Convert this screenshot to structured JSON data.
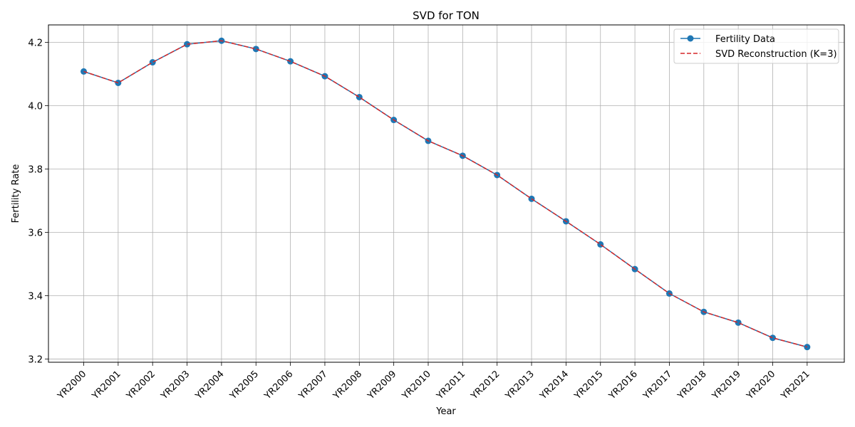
{
  "chart_data": {
    "type": "line",
    "title": "SVD for TON",
    "xlabel": "Year",
    "ylabel": "Fertility Rate",
    "categories": [
      "YR2000",
      "YR2001",
      "YR2002",
      "YR2003",
      "YR2004",
      "YR2005",
      "YR2006",
      "YR2007",
      "YR2008",
      "YR2009",
      "YR2010",
      "YR2011",
      "YR2012",
      "YR2013",
      "YR2014",
      "YR2015",
      "YR2016",
      "YR2017",
      "YR2018",
      "YR2019",
      "YR2020",
      "YR2021"
    ],
    "yticks": [
      "3.2",
      "3.4",
      "3.6",
      "3.8",
      "4.0",
      "4.2"
    ],
    "ylim": [
      3.19,
      4.255
    ],
    "grid": true,
    "legend_position": "top-right",
    "series": [
      {
        "name": "Fertility Data",
        "color": "#1f77b4",
        "style": "solid-with-circle-markers",
        "values": [
          4.108,
          4.072,
          4.137,
          4.194,
          4.205,
          4.179,
          4.14,
          4.093,
          4.027,
          3.955,
          3.889,
          3.842,
          3.781,
          3.706,
          3.635,
          3.562,
          3.484,
          3.407,
          3.349,
          3.315,
          3.267,
          3.238
        ]
      },
      {
        "name": "SVD Reconstruction (K=3)",
        "color": "#d62728",
        "style": "dashed",
        "values": [
          4.108,
          4.072,
          4.137,
          4.194,
          4.205,
          4.179,
          4.14,
          4.093,
          4.027,
          3.955,
          3.889,
          3.842,
          3.781,
          3.706,
          3.635,
          3.562,
          3.484,
          3.407,
          3.349,
          3.315,
          3.267,
          3.238
        ]
      }
    ]
  }
}
